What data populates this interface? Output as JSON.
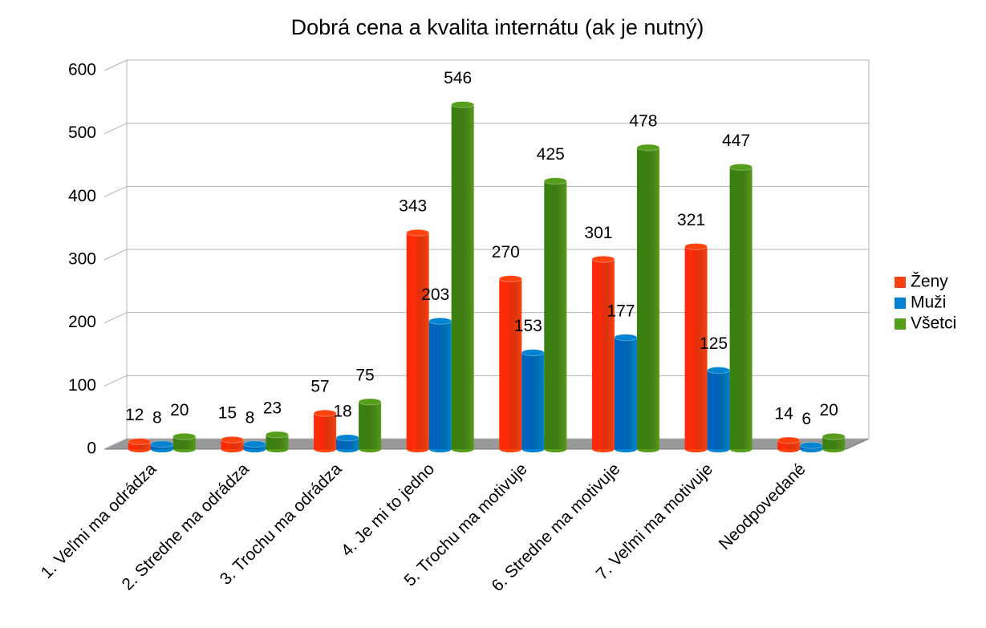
{
  "chart_data": {
    "type": "bar",
    "title": "Dobrá cena a kvalita internátu (ak je nutný)",
    "categories": [
      "1. Veľmi ma odrádza",
      "2. Stredne ma odrádza",
      "3. Trochu ma odrádza",
      "4. Je mi to jedno",
      "5. Trochu ma motivuje",
      "6. Stredne ma motivuje",
      "7. Veľmi ma motivuje",
      "Neodpovedané"
    ],
    "series": [
      {
        "name": "Ženy",
        "color": "#ff420e",
        "values": [
          12,
          15,
          57,
          343,
          270,
          301,
          321,
          14
        ]
      },
      {
        "name": "Muži",
        "color": "#0084d1",
        "values": [
          8,
          8,
          18,
          203,
          153,
          177,
          125,
          6
        ]
      },
      {
        "name": "Všetci",
        "color": "#579d1c",
        "values": [
          20,
          23,
          75,
          546,
          425,
          478,
          447,
          20
        ]
      }
    ],
    "ylim": [
      0,
      600
    ],
    "yticks": [
      0,
      100,
      200,
      300,
      400,
      500,
      600
    ],
    "grid": true,
    "legend": "right"
  }
}
